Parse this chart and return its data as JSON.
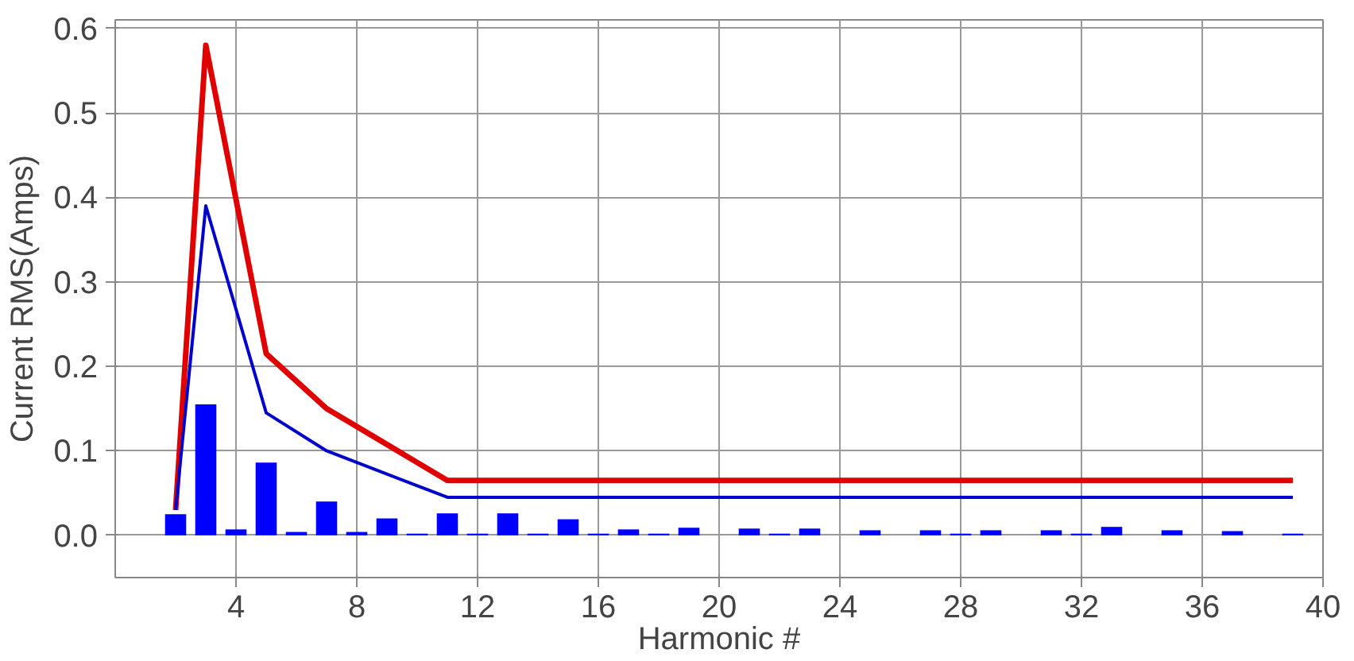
{
  "chart_data": {
    "type": "bar",
    "xlabel": "Harmonic #",
    "ylabel": "Current RMS(Amps)",
    "xlim": [
      0,
      40
    ],
    "xticks": [
      4,
      8,
      12,
      16,
      20,
      24,
      28,
      32,
      36,
      40
    ],
    "ylim": [
      -0.05,
      0.61
    ],
    "yticks": [
      {
        "value": 0,
        "label": "0.0"
      },
      0.1,
      0.2,
      0.3,
      0.4,
      0.5,
      0.6
    ],
    "grid": true,
    "series": [
      {
        "color": "#0000ff",
        "x": [
          2,
          3,
          4,
          5,
          6,
          7,
          8,
          9,
          10,
          11,
          12,
          13,
          14,
          15,
          16,
          17,
          18,
          19,
          21,
          22,
          23,
          25,
          27,
          28,
          29,
          31,
          32,
          33,
          35,
          37,
          39
        ],
        "values": [
          0.025,
          0.155,
          0.007,
          0.086,
          0.004,
          0.04,
          0.004,
          0.02,
          0.002,
          0.026,
          0.002,
          0.026,
          0.002,
          0.019,
          0.002,
          0.007,
          0.002,
          0.009,
          0.008,
          0.002,
          0.008,
          0.006,
          0.006,
          0.002,
          0.006,
          0.006,
          0.002,
          0.01,
          0.006,
          0.005,
          0.002
        ]
      },
      {
        "type": "line",
        "color": "#e00000",
        "x": [
          2,
          3,
          5,
          7,
          11,
          39
        ],
        "values": [
          0.03,
          0.58,
          0.215,
          0.15,
          0.065,
          0.065
        ]
      },
      {
        "type": "line",
        "color": "#0000cc",
        "x": [
          2,
          3,
          5,
          7,
          11,
          39
        ],
        "values": [
          0.03,
          0.39,
          0.145,
          0.1,
          0.045,
          0.045
        ]
      }
    ]
  }
}
